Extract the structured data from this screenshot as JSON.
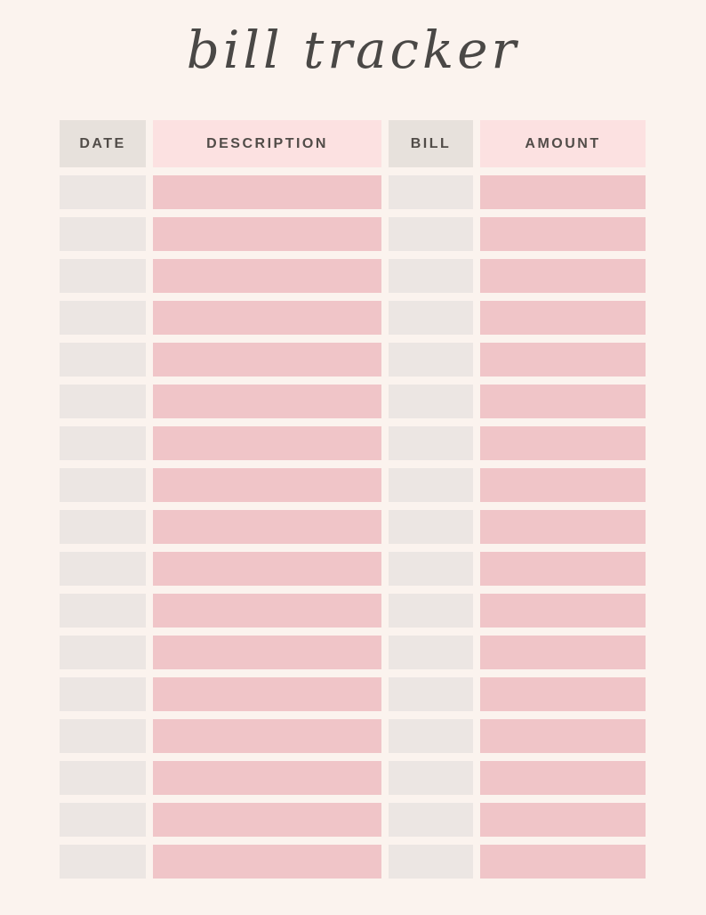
{
  "page": {
    "title": "bill tracker"
  },
  "table": {
    "header": {
      "date": "DATE",
      "description": "DESCRIPTION",
      "bill": "BILL",
      "amount": "AMOUNT"
    },
    "row_count": 17,
    "rows": [
      {
        "date": "",
        "description": "",
        "bill": "",
        "amount": ""
      },
      {
        "date": "",
        "description": "",
        "bill": "",
        "amount": ""
      },
      {
        "date": "",
        "description": "",
        "bill": "",
        "amount": ""
      },
      {
        "date": "",
        "description": "",
        "bill": "",
        "amount": ""
      },
      {
        "date": "",
        "description": "",
        "bill": "",
        "amount": ""
      },
      {
        "date": "",
        "description": "",
        "bill": "",
        "amount": ""
      },
      {
        "date": "",
        "description": "",
        "bill": "",
        "amount": ""
      },
      {
        "date": "",
        "description": "",
        "bill": "",
        "amount": ""
      },
      {
        "date": "",
        "description": "",
        "bill": "",
        "amount": ""
      },
      {
        "date": "",
        "description": "",
        "bill": "",
        "amount": ""
      },
      {
        "date": "",
        "description": "",
        "bill": "",
        "amount": ""
      },
      {
        "date": "",
        "description": "",
        "bill": "",
        "amount": ""
      },
      {
        "date": "",
        "description": "",
        "bill": "",
        "amount": ""
      },
      {
        "date": "",
        "description": "",
        "bill": "",
        "amount": ""
      },
      {
        "date": "",
        "description": "",
        "bill": "",
        "amount": ""
      },
      {
        "date": "",
        "description": "",
        "bill": "",
        "amount": ""
      },
      {
        "date": "",
        "description": "",
        "bill": "",
        "amount": ""
      }
    ]
  },
  "colors": {
    "page_background": "#fbf3ee",
    "header_neutral": "#e7e1dc",
    "header_pink": "#fce1e1",
    "cell_neutral": "#ece6e3",
    "cell_pink": "#f0c5c8",
    "header_text": "#514c48",
    "title_text": "#4a4846"
  }
}
